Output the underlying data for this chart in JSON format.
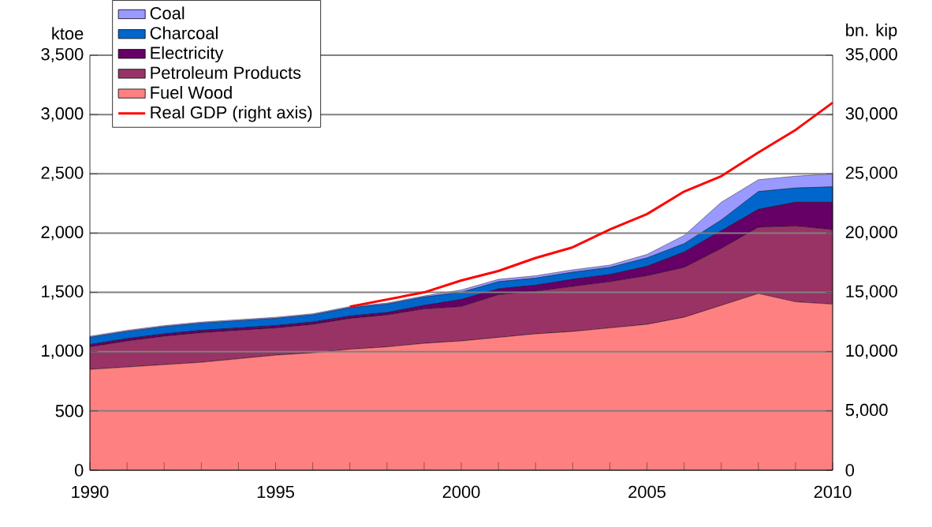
{
  "chart_data": {
    "type": "area",
    "stacked": true,
    "ylabel": "ktoe",
    "y2label": "bn. kip",
    "x": [
      1990,
      1991,
      1992,
      1993,
      1994,
      1995,
      1996,
      1997,
      1998,
      1999,
      2000,
      2001,
      2002,
      2003,
      2004,
      2005,
      2006,
      2007,
      2008,
      2009,
      2010
    ],
    "series": [
      {
        "name": "Fuel Wood",
        "color": "#ff8080",
        "values": [
          850,
          870,
          890,
          910,
          940,
          970,
          990,
          1020,
          1040,
          1070,
          1090,
          1120,
          1150,
          1170,
          1200,
          1230,
          1290,
          1390,
          1490,
          1420,
          1400
        ]
      },
      {
        "name": "Petroleum Products",
        "color": "#993366",
        "values": [
          190,
          220,
          240,
          250,
          240,
          230,
          240,
          260,
          270,
          290,
          290,
          360,
          360,
          380,
          390,
          410,
          420,
          480,
          560,
          640,
          630
        ]
      },
      {
        "name": "Electricity",
        "color": "#660066",
        "values": [
          20,
          20,
          20,
          20,
          20,
          20,
          20,
          20,
          20,
          30,
          60,
          50,
          50,
          60,
          60,
          80,
          130,
          150,
          150,
          200,
          230
        ]
      },
      {
        "name": "Charcoal",
        "color": "#0066cc",
        "values": [
          60,
          60,
          60,
          60,
          60,
          60,
          60,
          70,
          70,
          70,
          60,
          60,
          60,
          60,
          60,
          70,
          70,
          90,
          150,
          120,
          130
        ]
      },
      {
        "name": "Coal",
        "color": "#9999ff",
        "values": [
          10,
          10,
          10,
          10,
          10,
          10,
          10,
          10,
          10,
          10,
          20,
          20,
          20,
          20,
          20,
          30,
          70,
          150,
          100,
          100,
          110
        ]
      },
      {
        "name": "Real GDP (right axis)",
        "type": "line",
        "axis": "y2",
        "color": "#ff0000",
        "x": [
          1997,
          1998,
          1999,
          2000,
          2001,
          2002,
          2003,
          2004,
          2005,
          2006,
          2007,
          2008,
          2009,
          2010
        ],
        "values": [
          13800,
          14400,
          15000,
          16000,
          16800,
          17900,
          18800,
          20300,
          21600,
          23500,
          24800,
          26800,
          28700,
          31000
        ]
      }
    ],
    "xlim": [
      1990,
      2010
    ],
    "xticks": [
      1990,
      {
        "value": 1991,
        "label": null
      },
      {
        "value": 1992,
        "label": null
      },
      {
        "value": 1993,
        "label": null
      },
      {
        "value": 1994,
        "label": null
      },
      1995,
      {
        "value": 1996,
        "label": null
      },
      {
        "value": 1997,
        "label": null
      },
      {
        "value": 1998,
        "label": null
      },
      {
        "value": 1999,
        "label": null
      },
      2000,
      {
        "value": 2001,
        "label": null
      },
      {
        "value": 2002,
        "label": null
      },
      {
        "value": 2003,
        "label": null
      },
      {
        "value": 2004,
        "label": null
      },
      2005,
      {
        "value": 2006,
        "label": null
      },
      {
        "value": 2007,
        "label": null
      },
      {
        "value": 2008,
        "label": null
      },
      {
        "value": 2009,
        "label": null
      },
      2010
    ],
    "ylim": [
      0,
      3500
    ],
    "yticks": [
      0,
      500,
      {
        "value": 1000,
        "label": "1,000"
      },
      {
        "value": 1500,
        "label": "1,500"
      },
      {
        "value": 2000,
        "label": "2,000"
      },
      {
        "value": 2500,
        "label": "2,500"
      },
      {
        "value": 3000,
        "label": "3,000"
      },
      {
        "value": 3500,
        "label": "3,500"
      }
    ],
    "y2lim": [
      0,
      35000
    ],
    "y2ticks": [
      0,
      {
        "value": 5000,
        "label": "5,000"
      },
      {
        "value": 10000,
        "label": "10,000"
      },
      {
        "value": 15000,
        "label": "15,000"
      },
      {
        "value": 20000,
        "label": "20,000"
      },
      {
        "value": 25000,
        "label": "25,000"
      },
      {
        "value": 30000,
        "label": "30,000"
      },
      {
        "value": 35000,
        "label": "35,000"
      }
    ],
    "grid": "y",
    "legend": "top"
  }
}
